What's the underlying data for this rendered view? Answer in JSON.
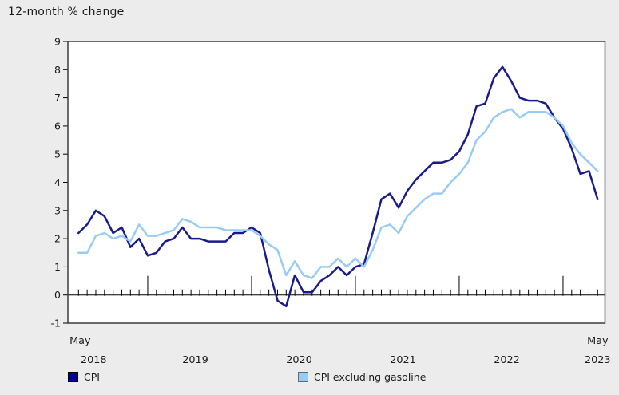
{
  "header": {
    "title": "12-month % change"
  },
  "legend": [
    {
      "label": "CPI",
      "swatch_color": "#000099",
      "swatch_border": "#000000"
    },
    {
      "label": "CPI excluding gasoline",
      "swatch_color": "#99CCF2",
      "swatch_border": "#5A6B7D"
    }
  ],
  "chart_data": {
    "type": "line",
    "title": "12-month % change",
    "xlabel": "",
    "ylabel": "12-month % change",
    "ylim": [
      -1,
      9
    ],
    "yticks": [
      -1,
      0,
      1,
      2,
      3,
      4,
      5,
      6,
      7,
      8,
      9
    ],
    "grid": false,
    "legend_position": "bottom",
    "x_start_label": {
      "month": "May",
      "year": "2018"
    },
    "x_end_label": {
      "month": "May",
      "year": "2023"
    },
    "x_year_labels": [
      "2019",
      "2020",
      "2021",
      "2022"
    ],
    "x": [
      "2018-05",
      "2018-06",
      "2018-07",
      "2018-08",
      "2018-09",
      "2018-10",
      "2018-11",
      "2018-12",
      "2019-01",
      "2019-02",
      "2019-03",
      "2019-04",
      "2019-05",
      "2019-06",
      "2019-07",
      "2019-08",
      "2019-09",
      "2019-10",
      "2019-11",
      "2019-12",
      "2020-01",
      "2020-02",
      "2020-03",
      "2020-04",
      "2020-05",
      "2020-06",
      "2020-07",
      "2020-08",
      "2020-09",
      "2020-10",
      "2020-11",
      "2020-12",
      "2021-01",
      "2021-02",
      "2021-03",
      "2021-04",
      "2021-05",
      "2021-06",
      "2021-07",
      "2021-08",
      "2021-09",
      "2021-10",
      "2021-11",
      "2021-12",
      "2022-01",
      "2022-02",
      "2022-03",
      "2022-04",
      "2022-05",
      "2022-06",
      "2022-07",
      "2022-08",
      "2022-09",
      "2022-10",
      "2022-11",
      "2022-12",
      "2023-01",
      "2023-02",
      "2023-03",
      "2023-04",
      "2023-05"
    ],
    "series": [
      {
        "name": "CPI",
        "color": "#1A1A8C",
        "values": [
          2.2,
          2.5,
          3.0,
          2.8,
          2.2,
          2.4,
          1.7,
          2.0,
          1.4,
          1.5,
          1.9,
          2.0,
          2.4,
          2.0,
          2.0,
          1.9,
          1.9,
          1.9,
          2.2,
          2.2,
          2.4,
          2.2,
          0.9,
          -0.2,
          -0.4,
          0.7,
          0.1,
          0.1,
          0.5,
          0.7,
          1.0,
          0.7,
          1.0,
          1.1,
          2.2,
          3.4,
          3.6,
          3.1,
          3.7,
          4.1,
          4.4,
          4.7,
          4.7,
          4.8,
          5.1,
          5.7,
          6.7,
          6.8,
          7.7,
          8.1,
          7.6,
          7.0,
          6.9,
          6.9,
          6.8,
          6.3,
          5.9,
          5.2,
          4.3,
          4.4,
          3.4
        ]
      },
      {
        "name": "CPI excluding gasoline",
        "color": "#99CCF2",
        "values": [
          1.5,
          1.5,
          2.1,
          2.2,
          2.0,
          2.1,
          1.9,
          2.5,
          2.1,
          2.1,
          2.2,
          2.3,
          2.7,
          2.6,
          2.4,
          2.4,
          2.4,
          2.3,
          2.3,
          2.3,
          2.3,
          2.1,
          1.8,
          1.6,
          0.7,
          1.2,
          0.7,
          0.6,
          1.0,
          1.0,
          1.3,
          1.0,
          1.3,
          1.0,
          1.6,
          2.4,
          2.5,
          2.2,
          2.8,
          3.1,
          3.4,
          3.6,
          3.6,
          4.0,
          4.3,
          4.7,
          5.5,
          5.8,
          6.3,
          6.5,
          6.6,
          6.3,
          6.5,
          6.5,
          6.5,
          6.3,
          6.0,
          5.4,
          5.0,
          4.7,
          4.4
        ]
      }
    ],
    "colors": {
      "plot_background": "#FFFFFF",
      "page_background": "#ECECEC",
      "frame": "#3C3C3C",
      "tick": "#000000",
      "text": "#1A1A1A"
    }
  }
}
